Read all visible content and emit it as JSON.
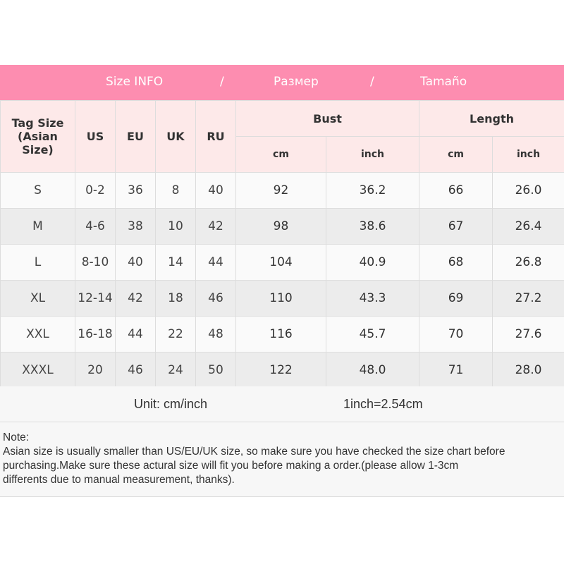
{
  "banner": {
    "title_en": "Size INFO",
    "sep1": "/",
    "title_ru": "Размер",
    "sep2": "/",
    "title_es": "Tamaño"
  },
  "colors": {
    "banner": "#fd8db0",
    "header_bg": "#fde9e9"
  },
  "headers": {
    "tag_size": "Tag Size",
    "tag_size_sub": "(Asian Size)",
    "us": "US",
    "eu": "EU",
    "uk": "UK",
    "ru": "RU",
    "bust": "Bust",
    "length": "Length",
    "bust_cm": "cm",
    "bust_inch": "inch",
    "length_cm": "cm",
    "length_inch": "inch"
  },
  "rows": [
    [
      "S",
      "0-2",
      "36",
      "8",
      "40",
      "92",
      "36.2",
      "66",
      "26.0"
    ],
    [
      "M",
      "4-6",
      "38",
      "10",
      "42",
      "98",
      "38.6",
      "67",
      "26.4"
    ],
    [
      "L",
      "8-10",
      "40",
      "14",
      "44",
      "104",
      "40.9",
      "68",
      "26.8"
    ],
    [
      "XL",
      "12-14",
      "42",
      "18",
      "46",
      "110",
      "43.3",
      "69",
      "27.2"
    ],
    [
      "XXL",
      "16-18",
      "44",
      "22",
      "48",
      "116",
      "45.7",
      "70",
      "27.6"
    ],
    [
      "XXXL",
      "20",
      "46",
      "24",
      "50",
      "122",
      "48.0",
      "71",
      "28.0"
    ]
  ],
  "unit": {
    "label": "Unit: cm/inch",
    "conversion": "1inch=2.54cm"
  },
  "note": {
    "title": "Note:",
    "lines": [
      "Asian size is usually smaller than US/EU/UK size, so make sure you have checked the size chart before",
      "purchasing.Make sure these actural size will fit you before making a order.(please allow 1-3cm",
      "differents due to manual measurement, thanks)."
    ]
  }
}
